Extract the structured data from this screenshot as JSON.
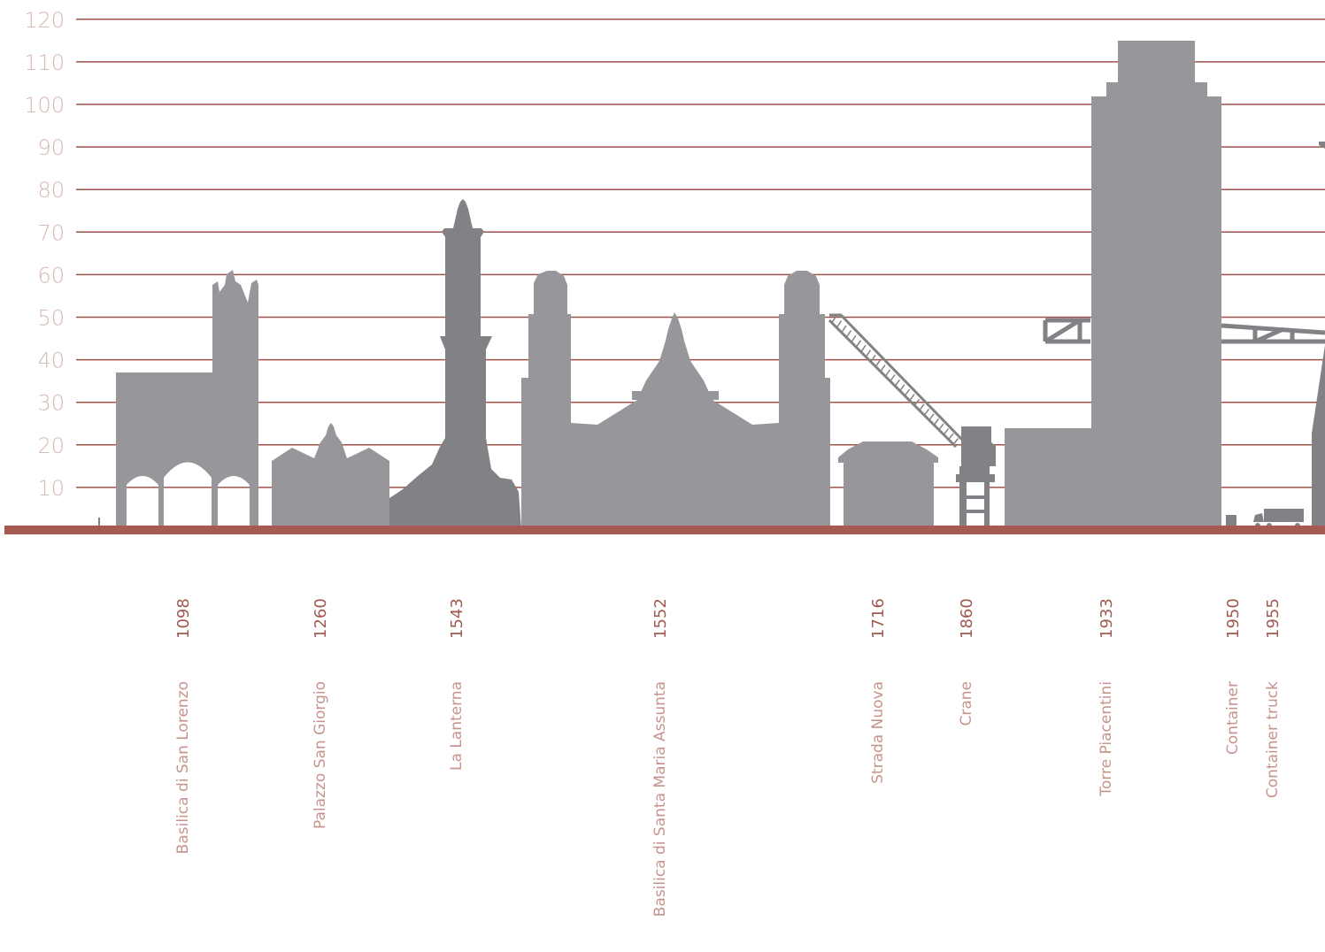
{
  "colors": {
    "grid": "#a0524a",
    "baseline": "#a55a52",
    "tick_text": "#d6b9b4",
    "year_text": "#a05a52",
    "name_text": "#c7948d",
    "building": "#97979b",
    "building_dark": "#828286",
    "background": "#ffffff"
  },
  "chart_data": {
    "type": "bar",
    "y_ticks": [
      10,
      20,
      30,
      40,
      50,
      60,
      70,
      80,
      90,
      100,
      110,
      120
    ],
    "ylim": [
      0,
      120
    ],
    "grid": true,
    "items": [
      {
        "name": "Basilica di San Lorenzo",
        "year": "1098",
        "height": 60
      },
      {
        "name": "Palazzo San Giorgio",
        "year": "1260",
        "height": 24
      },
      {
        "name": "La Lanterna",
        "year": "1543",
        "height": 77
      },
      {
        "name": "Basilica di Santa Maria Assunta",
        "year": "1552",
        "height": 60
      },
      {
        "name": "Strada Nuova",
        "year": "1716",
        "height": 20
      },
      {
        "name": "Crane",
        "year": "1860",
        "height": 50
      },
      {
        "name": "Torre Piacentini",
        "year": "1933",
        "height": 115
      },
      {
        "name": "Container",
        "year": "1950",
        "height": 2.6
      },
      {
        "name": "Container truck",
        "year": "1955",
        "height": 4
      }
    ]
  }
}
